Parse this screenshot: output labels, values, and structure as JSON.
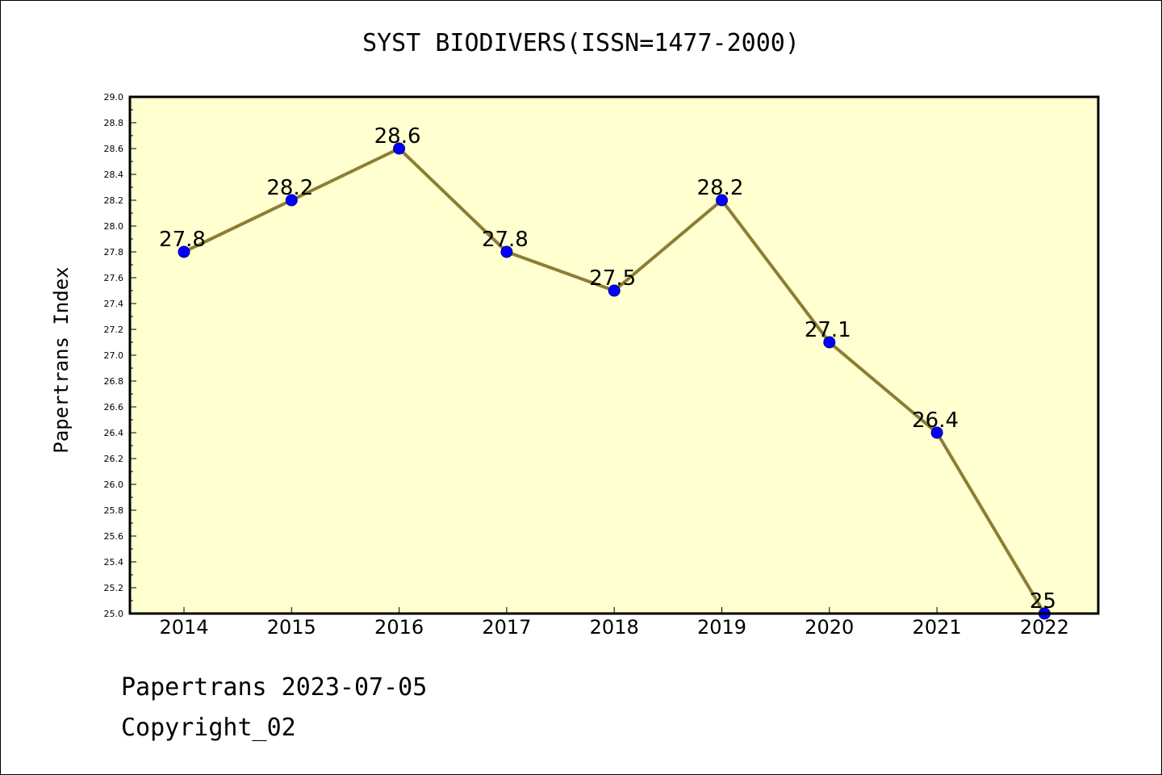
{
  "colors": {
    "plot_background": "#ffffd0",
    "line": "#8c7d35",
    "marker": "#0000ff",
    "axes": "#000000"
  },
  "chart_data": {
    "type": "line",
    "title": "SYST BIODIVERS(ISSN=1477-2000)",
    "xlabel": "",
    "ylabel": "Papertrans Index",
    "categories": [
      "2014",
      "2015",
      "2016",
      "2017",
      "2018",
      "2019",
      "2020",
      "2021",
      "2022"
    ],
    "series": [
      {
        "values": [
          27.8,
          28.2,
          28.6,
          27.8,
          27.5,
          28.2,
          27.1,
          26.4,
          25
        ]
      }
    ],
    "data_labels": [
      "27.8",
      "28.2",
      "28.6",
      "27.8",
      "27.5",
      "28.2",
      "27.1",
      "26.4",
      "25"
    ],
    "ylim": [
      25.0,
      29.0
    ],
    "yticks": [
      "25.0",
      "25.2",
      "25.4",
      "25.6",
      "25.8",
      "26.0",
      "26.2",
      "26.4",
      "26.6",
      "26.8",
      "27.0",
      "27.2",
      "27.4",
      "27.6",
      "27.8",
      "28.0",
      "28.2",
      "28.4",
      "28.6",
      "28.8",
      "29.0"
    ],
    "grid": false,
    "legend": "none"
  },
  "footer": {
    "line1": "Papertrans 2023-07-05",
    "line2": "Copyright_02"
  }
}
